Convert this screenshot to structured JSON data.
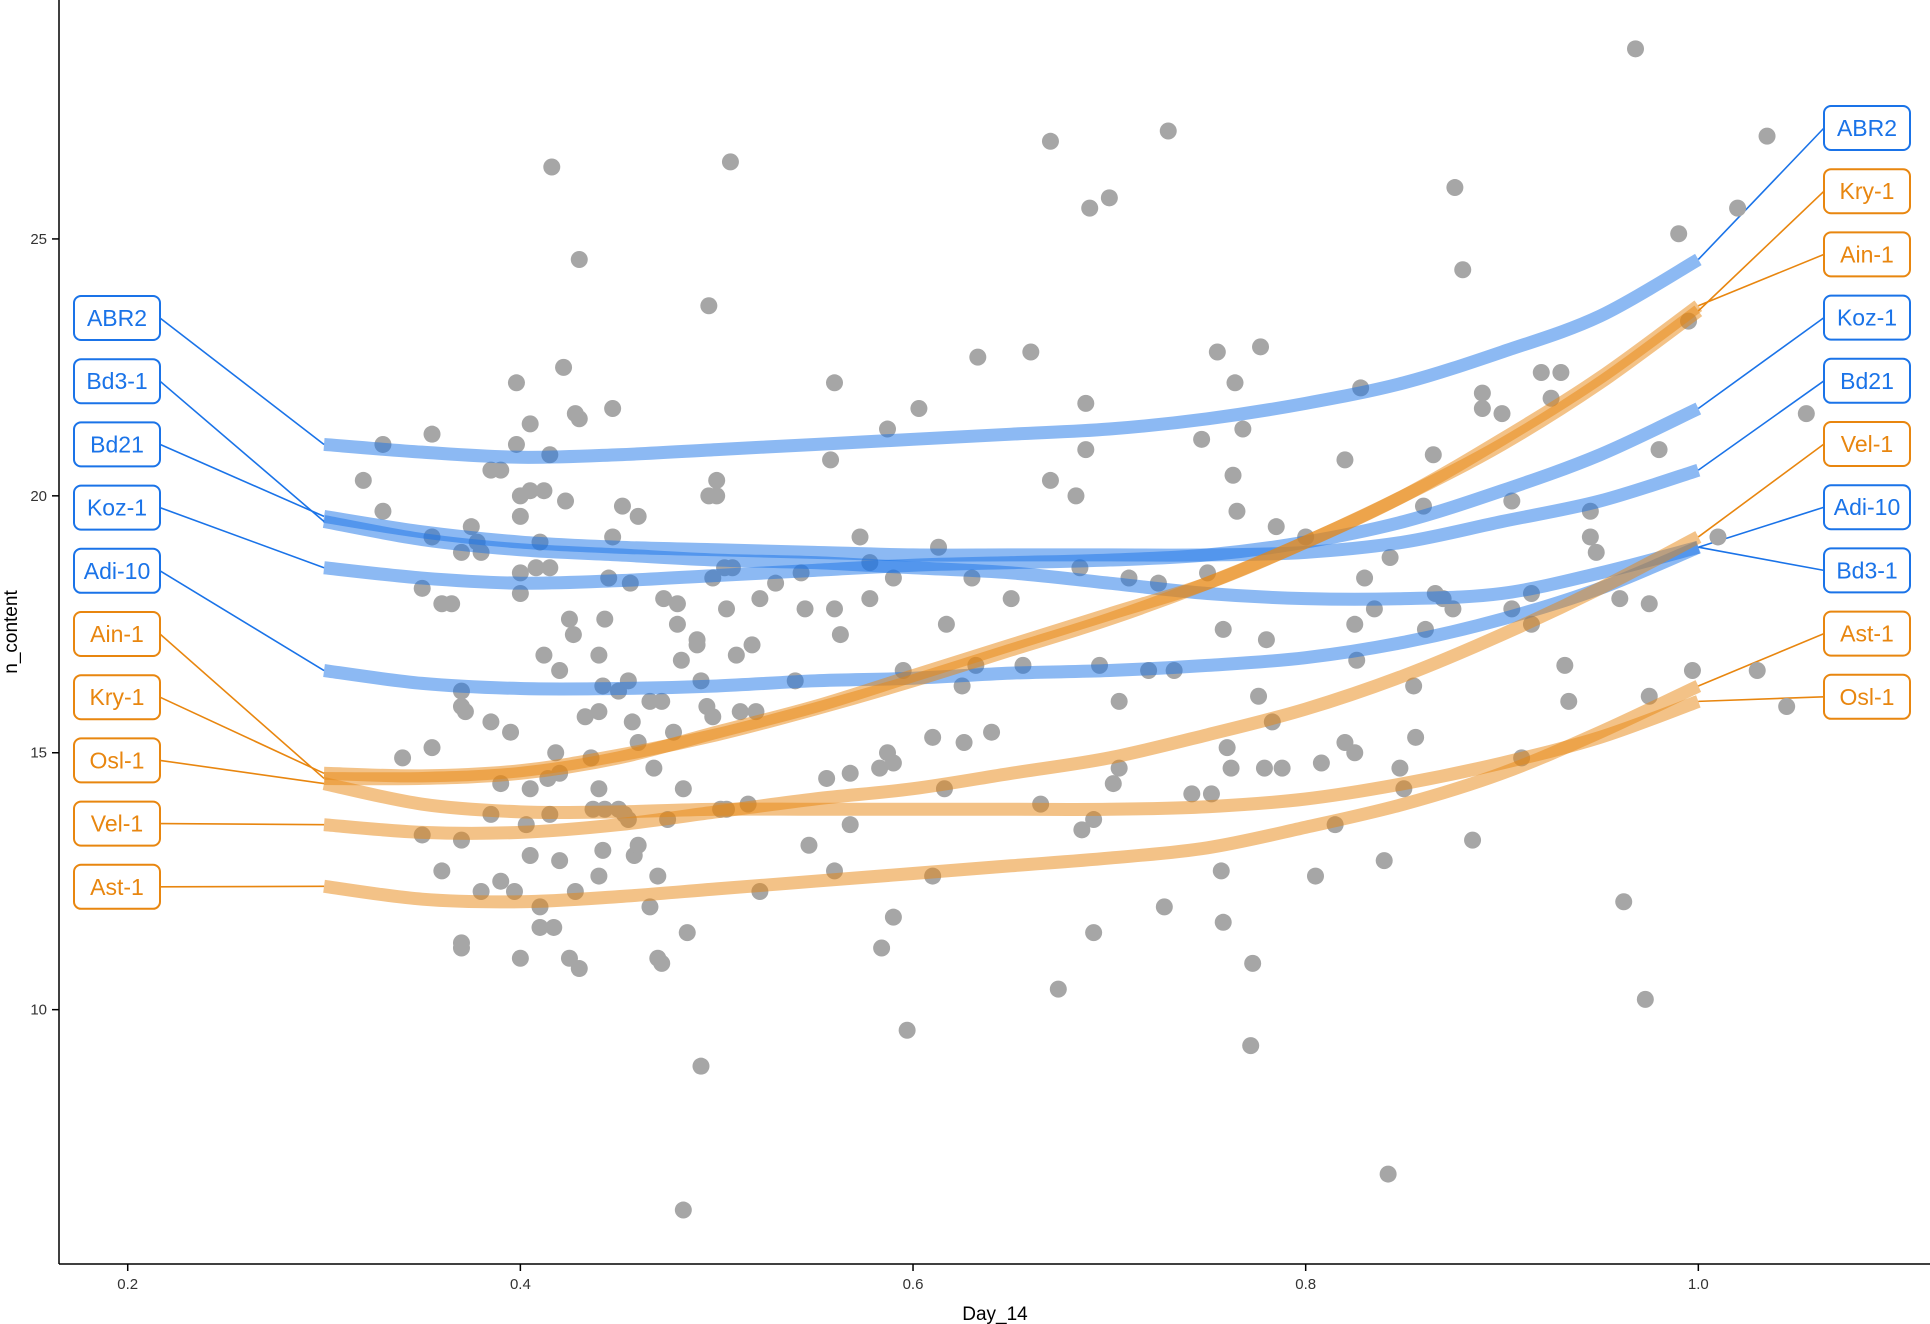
{
  "chart_data": {
    "type": "scatter",
    "title": "",
    "xlabel": "Day_14",
    "ylabel": "n_content",
    "xlim": [
      0.165,
      1.118
    ],
    "ylim": [
      5.05,
      29.65
    ],
    "x_ticks": [
      0.2,
      0.4,
      0.6,
      0.8,
      1.0
    ],
    "x_tick_labels": [
      "0.2",
      "0.4",
      "0.6",
      "0.8",
      "1.0"
    ],
    "y_ticks": [
      10,
      15,
      20,
      25
    ],
    "y_tick_labels": [
      "10",
      "15",
      "20",
      "25"
    ],
    "grid": false,
    "legend": "none",
    "colors": {
      "blue": "#1a73e8",
      "orange": "#e8860f",
      "points": "#a6a6a6",
      "axis": "#000000"
    },
    "points": [
      [
        0.21,
        20.0
      ],
      [
        0.33,
        21.0
      ],
      [
        0.32,
        20.3
      ],
      [
        0.33,
        19.7
      ],
      [
        0.34,
        14.9
      ],
      [
        0.35,
        18.2
      ],
      [
        0.35,
        13.4
      ],
      [
        0.355,
        15.1
      ],
      [
        0.355,
        21.2
      ],
      [
        0.36,
        17.9
      ],
      [
        0.36,
        12.7
      ],
      [
        0.355,
        19.2
      ],
      [
        0.365,
        17.9
      ],
      [
        0.37,
        16.2
      ],
      [
        0.37,
        15.9
      ],
      [
        0.37,
        18.9
      ],
      [
        0.37,
        13.3
      ],
      [
        0.37,
        11.3
      ],
      [
        0.37,
        11.2
      ],
      [
        0.372,
        15.8
      ],
      [
        0.375,
        19.4
      ],
      [
        0.378,
        19.1
      ],
      [
        0.38,
        18.9
      ],
      [
        0.38,
        12.3
      ],
      [
        0.385,
        15.6
      ],
      [
        0.385,
        20.5
      ],
      [
        0.385,
        13.8
      ],
      [
        0.39,
        20.5
      ],
      [
        0.39,
        14.4
      ],
      [
        0.39,
        12.5
      ],
      [
        0.395,
        15.4
      ],
      [
        0.397,
        12.3
      ],
      [
        0.398,
        21.0
      ],
      [
        0.398,
        22.2
      ],
      [
        0.4,
        19.6
      ],
      [
        0.4,
        20.0
      ],
      [
        0.4,
        18.5
      ],
      [
        0.4,
        18.1
      ],
      [
        0.4,
        11.0
      ],
      [
        0.403,
        13.6
      ],
      [
        0.405,
        20.1
      ],
      [
        0.405,
        21.4
      ],
      [
        0.405,
        14.3
      ],
      [
        0.405,
        13.0
      ],
      [
        0.408,
        18.6
      ],
      [
        0.41,
        19.1
      ],
      [
        0.41,
        12.0
      ],
      [
        0.41,
        11.6
      ],
      [
        0.412,
        20.1
      ],
      [
        0.412,
        16.9
      ],
      [
        0.414,
        14.5
      ],
      [
        0.415,
        18.6
      ],
      [
        0.415,
        13.8
      ],
      [
        0.415,
        20.8
      ],
      [
        0.416,
        26.4
      ],
      [
        0.417,
        11.6
      ],
      [
        0.418,
        15.0
      ],
      [
        0.42,
        14.6
      ],
      [
        0.42,
        16.6
      ],
      [
        0.42,
        12.9
      ],
      [
        0.422,
        22.5
      ],
      [
        0.423,
        19.9
      ],
      [
        0.425,
        11.0
      ],
      [
        0.425,
        17.6
      ],
      [
        0.427,
        17.3
      ],
      [
        0.428,
        12.3
      ],
      [
        0.428,
        21.6
      ],
      [
        0.43,
        21.5
      ],
      [
        0.43,
        24.6
      ],
      [
        0.43,
        10.8
      ],
      [
        0.433,
        15.7
      ],
      [
        0.436,
        14.9
      ],
      [
        0.437,
        13.9
      ],
      [
        0.44,
        16.9
      ],
      [
        0.44,
        14.3
      ],
      [
        0.44,
        15.8
      ],
      [
        0.44,
        12.6
      ],
      [
        0.442,
        16.3
      ],
      [
        0.442,
        13.1
      ],
      [
        0.443,
        17.6
      ],
      [
        0.443,
        13.9
      ],
      [
        0.445,
        18.4
      ],
      [
        0.447,
        19.2
      ],
      [
        0.447,
        21.7
      ],
      [
        0.45,
        16.2
      ],
      [
        0.45,
        13.9
      ],
      [
        0.452,
        19.8
      ],
      [
        0.453,
        13.8
      ],
      [
        0.455,
        16.4
      ],
      [
        0.455,
        13.7
      ],
      [
        0.456,
        18.3
      ],
      [
        0.457,
        15.6
      ],
      [
        0.458,
        13.0
      ],
      [
        0.46,
        15.2
      ],
      [
        0.46,
        13.2
      ],
      [
        0.46,
        19.6
      ],
      [
        0.466,
        16.0
      ],
      [
        0.466,
        12.0
      ],
      [
        0.468,
        14.7
      ],
      [
        0.47,
        12.6
      ],
      [
        0.47,
        11.0
      ],
      [
        0.472,
        10.9
      ],
      [
        0.472,
        16.0
      ],
      [
        0.473,
        18.0
      ],
      [
        0.475,
        13.7
      ],
      [
        0.478,
        15.4
      ],
      [
        0.48,
        17.9
      ],
      [
        0.48,
        17.5
      ],
      [
        0.482,
        16.8
      ],
      [
        0.483,
        14.3
      ],
      [
        0.483,
        6.1
      ],
      [
        0.485,
        11.5
      ],
      [
        0.49,
        17.1
      ],
      [
        0.49,
        17.2
      ],
      [
        0.492,
        8.9
      ],
      [
        0.492,
        16.4
      ],
      [
        0.495,
        15.9
      ],
      [
        0.496,
        23.7
      ],
      [
        0.496,
        20.0
      ],
      [
        0.498,
        15.7
      ],
      [
        0.498,
        18.4
      ],
      [
        0.5,
        20.0
      ],
      [
        0.5,
        20.3
      ],
      [
        0.502,
        13.9
      ],
      [
        0.504,
        18.6
      ],
      [
        0.505,
        17.8
      ],
      [
        0.505,
        13.9
      ],
      [
        0.507,
        26.5
      ],
      [
        0.508,
        18.6
      ],
      [
        0.51,
        16.9
      ],
      [
        0.512,
        15.8
      ],
      [
        0.516,
        14.0
      ],
      [
        0.518,
        17.1
      ],
      [
        0.52,
        15.8
      ],
      [
        0.522,
        12.3
      ],
      [
        0.522,
        18.0
      ],
      [
        0.53,
        18.3
      ],
      [
        0.54,
        16.4
      ],
      [
        0.543,
        18.5
      ],
      [
        0.545,
        17.8
      ],
      [
        0.547,
        13.2
      ],
      [
        0.556,
        14.5
      ],
      [
        0.558,
        20.7
      ],
      [
        0.56,
        17.8
      ],
      [
        0.56,
        12.7
      ],
      [
        0.56,
        22.2
      ],
      [
        0.563,
        17.3
      ],
      [
        0.568,
        14.6
      ],
      [
        0.568,
        13.6
      ],
      [
        0.573,
        19.2
      ],
      [
        0.578,
        18.7
      ],
      [
        0.578,
        18.0
      ],
      [
        0.583,
        14.7
      ],
      [
        0.584,
        11.2
      ],
      [
        0.587,
        15.0
      ],
      [
        0.587,
        21.3
      ],
      [
        0.59,
        14.8
      ],
      [
        0.59,
        18.4
      ],
      [
        0.59,
        11.8
      ],
      [
        0.595,
        16.6
      ],
      [
        0.597,
        9.6
      ],
      [
        0.603,
        21.7
      ],
      [
        0.61,
        15.3
      ],
      [
        0.61,
        12.6
      ],
      [
        0.613,
        19.0
      ],
      [
        0.616,
        14.3
      ],
      [
        0.617,
        17.5
      ],
      [
        0.625,
        16.3
      ],
      [
        0.626,
        15.2
      ],
      [
        0.63,
        18.4
      ],
      [
        0.632,
        16.7
      ],
      [
        0.633,
        22.7
      ],
      [
        0.64,
        15.4
      ],
      [
        0.65,
        18.0
      ],
      [
        0.656,
        16.7
      ],
      [
        0.66,
        22.8
      ],
      [
        0.665,
        14.0
      ],
      [
        0.67,
        26.9
      ],
      [
        0.67,
        20.3
      ],
      [
        0.674,
        10.4
      ],
      [
        0.683,
        20.0
      ],
      [
        0.685,
        18.6
      ],
      [
        0.686,
        13.5
      ],
      [
        0.688,
        20.9
      ],
      [
        0.688,
        21.8
      ],
      [
        0.69,
        25.6
      ],
      [
        0.692,
        13.7
      ],
      [
        0.692,
        11.5
      ],
      [
        0.695,
        16.7
      ],
      [
        0.7,
        25.8
      ],
      [
        0.702,
        14.4
      ],
      [
        0.705,
        14.7
      ],
      [
        0.705,
        16.0
      ],
      [
        0.71,
        18.4
      ],
      [
        0.72,
        16.6
      ],
      [
        0.725,
        18.3
      ],
      [
        0.728,
        12.0
      ],
      [
        0.73,
        27.1
      ],
      [
        0.733,
        16.6
      ],
      [
        0.742,
        14.2
      ],
      [
        0.747,
        21.1
      ],
      [
        0.75,
        18.5
      ],
      [
        0.752,
        14.2
      ],
      [
        0.755,
        22.8
      ],
      [
        0.757,
        12.7
      ],
      [
        0.758,
        11.7
      ],
      [
        0.758,
        17.4
      ],
      [
        0.76,
        15.1
      ],
      [
        0.762,
        14.7
      ],
      [
        0.763,
        20.4
      ],
      [
        0.764,
        22.2
      ],
      [
        0.765,
        19.7
      ],
      [
        0.768,
        21.3
      ],
      [
        0.772,
        9.3
      ],
      [
        0.773,
        10.9
      ],
      [
        0.776,
        16.1
      ],
      [
        0.777,
        22.9
      ],
      [
        0.779,
        14.7
      ],
      [
        0.78,
        17.2
      ],
      [
        0.783,
        15.6
      ],
      [
        0.785,
        19.4
      ],
      [
        0.788,
        14.7
      ],
      [
        0.8,
        19.2
      ],
      [
        0.805,
        12.6
      ],
      [
        0.808,
        14.8
      ],
      [
        0.815,
        13.6
      ],
      [
        0.82,
        15.2
      ],
      [
        0.82,
        20.7
      ],
      [
        0.825,
        15.0
      ],
      [
        0.825,
        17.5
      ],
      [
        0.826,
        16.8
      ],
      [
        0.828,
        22.1
      ],
      [
        0.83,
        18.4
      ],
      [
        0.835,
        17.8
      ],
      [
        0.84,
        12.9
      ],
      [
        0.842,
        6.8
      ],
      [
        0.843,
        18.8
      ],
      [
        0.848,
        14.7
      ],
      [
        0.85,
        14.3
      ],
      [
        0.855,
        16.3
      ],
      [
        0.856,
        15.3
      ],
      [
        0.86,
        19.8
      ],
      [
        0.861,
        17.4
      ],
      [
        0.865,
        20.8
      ],
      [
        0.866,
        18.1
      ],
      [
        0.87,
        18.0
      ],
      [
        0.875,
        17.8
      ],
      [
        0.876,
        26.0
      ],
      [
        0.88,
        24.4
      ],
      [
        0.885,
        13.3
      ],
      [
        0.89,
        21.7
      ],
      [
        0.89,
        22.0
      ],
      [
        0.9,
        21.6
      ],
      [
        0.905,
        19.9
      ],
      [
        0.905,
        17.8
      ],
      [
        0.91,
        14.9
      ],
      [
        0.915,
        17.5
      ],
      [
        0.915,
        18.1
      ],
      [
        0.92,
        22.4
      ],
      [
        0.925,
        21.9
      ],
      [
        0.93,
        22.4
      ],
      [
        0.932,
        16.7
      ],
      [
        0.934,
        16.0
      ],
      [
        0.945,
        19.7
      ],
      [
        0.945,
        19.2
      ],
      [
        0.948,
        18.9
      ],
      [
        0.96,
        18.0
      ],
      [
        0.962,
        12.1
      ],
      [
        0.968,
        28.7
      ],
      [
        0.973,
        10.2
      ],
      [
        0.975,
        17.9
      ],
      [
        0.975,
        16.1
      ],
      [
        0.98,
        20.9
      ],
      [
        0.99,
        25.1
      ],
      [
        0.995,
        23.4
      ],
      [
        0.997,
        16.6
      ],
      [
        1.01,
        19.2
      ],
      [
        1.02,
        25.6
      ],
      [
        1.03,
        16.6
      ],
      [
        1.035,
        27.0
      ],
      [
        1.045,
        15.9
      ],
      [
        1.055,
        21.6
      ]
    ],
    "series": [
      {
        "name": "ABR2",
        "color": "blue",
        "x": [
          0.3,
          0.35,
          0.4,
          0.45,
          0.5,
          0.55,
          0.6,
          0.65,
          0.7,
          0.75,
          0.8,
          0.85,
          0.9,
          0.95,
          1.0
        ],
        "y": [
          21.0,
          20.85,
          20.75,
          20.8,
          20.9,
          21.0,
          21.1,
          21.2,
          21.3,
          21.5,
          21.8,
          22.2,
          22.8,
          23.5,
          24.6
        ]
      },
      {
        "name": "Bd3-1",
        "color": "blue",
        "x": [
          0.3,
          0.35,
          0.4,
          0.45,
          0.5,
          0.55,
          0.6,
          0.65,
          0.7,
          0.75,
          0.8,
          0.85,
          0.9,
          0.95,
          1.0
        ],
        "y": [
          19.5,
          19.15,
          18.95,
          18.85,
          18.75,
          18.7,
          18.6,
          18.5,
          18.3,
          18.1,
          18.0,
          18.0,
          18.1,
          18.5,
          19.0
        ]
      },
      {
        "name": "Bd21",
        "color": "blue",
        "x": [
          0.3,
          0.35,
          0.4,
          0.45,
          0.5,
          0.55,
          0.6,
          0.65,
          0.7,
          0.75,
          0.8,
          0.85,
          0.9,
          0.95,
          1.0
        ],
        "y": [
          19.6,
          19.3,
          19.1,
          19.0,
          18.95,
          18.9,
          18.85,
          18.85,
          18.85,
          18.85,
          18.9,
          19.1,
          19.5,
          19.9,
          20.5
        ]
      },
      {
        "name": "Koz-1",
        "color": "blue",
        "x": [
          0.3,
          0.35,
          0.4,
          0.45,
          0.5,
          0.55,
          0.6,
          0.65,
          0.7,
          0.75,
          0.8,
          0.85,
          0.9,
          0.95,
          1.0
        ],
        "y": [
          18.6,
          18.4,
          18.3,
          18.35,
          18.45,
          18.55,
          18.65,
          18.7,
          18.75,
          18.85,
          19.1,
          19.5,
          20.1,
          20.8,
          21.7
        ]
      },
      {
        "name": "Adi-10",
        "color": "blue",
        "x": [
          0.3,
          0.35,
          0.4,
          0.45,
          0.5,
          0.55,
          0.6,
          0.65,
          0.7,
          0.75,
          0.8,
          0.85,
          0.9,
          0.95,
          1.0
        ],
        "y": [
          16.6,
          16.35,
          16.25,
          16.25,
          16.3,
          16.4,
          16.45,
          16.55,
          16.6,
          16.7,
          16.85,
          17.15,
          17.6,
          18.2,
          19.0
        ]
      },
      {
        "name": "Ain-1",
        "color": "orange",
        "x": [
          0.3,
          0.35,
          0.4,
          0.45,
          0.5,
          0.55,
          0.6,
          0.65,
          0.7,
          0.75,
          0.8,
          0.85,
          0.9,
          0.95,
          1.0
        ],
        "y": [
          14.5,
          14.5,
          14.6,
          14.9,
          15.4,
          15.9,
          16.5,
          17.1,
          17.7,
          18.3,
          19.1,
          20.0,
          21.1,
          22.3,
          23.7
        ]
      },
      {
        "name": "Kry-1",
        "color": "orange",
        "x": [
          0.3,
          0.35,
          0.4,
          0.45,
          0.5,
          0.55,
          0.6,
          0.65,
          0.7,
          0.75,
          0.8,
          0.85,
          0.9,
          0.95,
          1.0
        ],
        "y": [
          14.6,
          14.55,
          14.65,
          14.95,
          15.35,
          15.85,
          16.4,
          17.0,
          17.6,
          18.3,
          19.1,
          20.0,
          21.0,
          22.2,
          23.6
        ]
      },
      {
        "name": "Osl-1",
        "color": "orange",
        "x": [
          0.3,
          0.35,
          0.4,
          0.45,
          0.5,
          0.55,
          0.6,
          0.65,
          0.7,
          0.75,
          0.8,
          0.85,
          0.9,
          0.95,
          1.0
        ],
        "y": [
          14.4,
          14.0,
          13.85,
          13.85,
          13.9,
          13.9,
          13.9,
          13.9,
          13.9,
          13.95,
          14.1,
          14.4,
          14.8,
          15.3,
          16.0
        ]
      },
      {
        "name": "Vel-1",
        "color": "orange",
        "x": [
          0.3,
          0.35,
          0.4,
          0.45,
          0.5,
          0.55,
          0.6,
          0.65,
          0.7,
          0.75,
          0.8,
          0.85,
          0.9,
          0.95,
          1.0
        ],
        "y": [
          13.6,
          13.45,
          13.45,
          13.6,
          13.85,
          14.1,
          14.3,
          14.6,
          14.9,
          15.35,
          15.85,
          16.5,
          17.3,
          18.2,
          19.2
        ]
      },
      {
        "name": "Ast-1",
        "color": "orange",
        "x": [
          0.3,
          0.35,
          0.4,
          0.45,
          0.5,
          0.55,
          0.6,
          0.65,
          0.7,
          0.75,
          0.8,
          0.85,
          0.9,
          0.95,
          1.0
        ],
        "y": [
          12.4,
          12.15,
          12.1,
          12.2,
          12.35,
          12.5,
          12.65,
          12.8,
          12.95,
          13.15,
          13.55,
          14.0,
          14.6,
          15.4,
          16.3
        ]
      }
    ],
    "labels_left": [
      "ABR2",
      "Bd3-1",
      "Bd21",
      "Koz-1",
      "Adi-10",
      "Ain-1",
      "Kry-1",
      "Osl-1",
      "Vel-1",
      "Ast-1"
    ],
    "labels_right": [
      "ABR2",
      "Kry-1",
      "Ain-1",
      "Koz-1",
      "Bd21",
      "Vel-1",
      "Adi-10",
      "Bd3-1",
      "Ast-1",
      "Osl-1"
    ]
  }
}
